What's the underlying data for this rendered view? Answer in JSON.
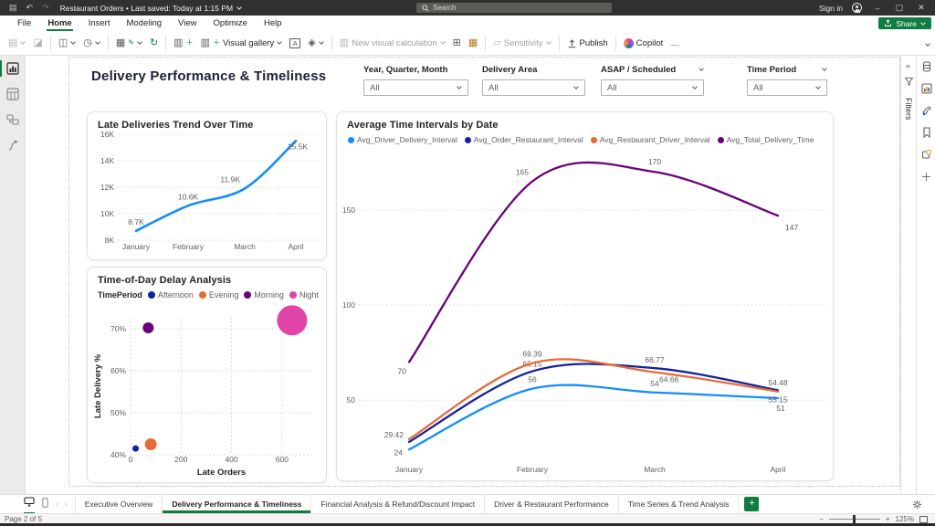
{
  "colors": {
    "accent_green": "#107C41",
    "titlebar_bg": "#323130",
    "axis_text": "#605E5C"
  },
  "titlebar": {
    "save_state": "Restaurant Orders • Last saved: Today at 1:15 PM",
    "search_placeholder": "Search",
    "sign_in": "Sign in"
  },
  "menu": {
    "items": [
      "File",
      "Home",
      "Insert",
      "Modeling",
      "View",
      "Optimize",
      "Help"
    ],
    "active_index": 1,
    "share_label": "Share"
  },
  "ribbon": {
    "visual_gallery_label": "Visual gallery",
    "new_visual_calc_label": "New visual calculation",
    "sensitivity_label": "Sensitivity",
    "publish_label": "Publish",
    "copilot_label": "Copilot",
    "more_label": "…"
  },
  "filters_pane": {
    "title": "Filters"
  },
  "page": {
    "title": "Delivery Performance & Timeliness",
    "slicers": [
      {
        "label": "Year, Quarter, Month",
        "value": "All",
        "header_chevron": false
      },
      {
        "label": "Delivery Area",
        "value": "All",
        "header_chevron": false
      },
      {
        "label": "ASAP / Scheduled",
        "value": "All",
        "header_chevron": true
      },
      {
        "label": "Time Period",
        "value": "All",
        "header_chevron": true
      }
    ]
  },
  "chart_data": [
    {
      "id": "late_deliveries",
      "type": "line",
      "title": "Late Deliveries Trend Over Time",
      "categories": [
        "January",
        "February",
        "March",
        "April"
      ],
      "series": [
        {
          "name": "Late Deliveries",
          "color": "#118DFF",
          "values": [
            8700,
            10600,
            11900,
            15500
          ],
          "labels": [
            "8.7K",
            "10.6K",
            "11.9K",
            "15.5K"
          ],
          "label_dx": [
            0,
            0,
            -5,
            2
          ],
          "label_dy": [
            -7,
            -7,
            -7,
            6
          ]
        }
      ],
      "ylim": [
        8000,
        16000
      ],
      "yticks": [
        {
          "v": 8000,
          "t": "8K"
        },
        {
          "v": 10000,
          "t": "10K"
        },
        {
          "v": 12000,
          "t": "12K"
        },
        {
          "v": 14000,
          "t": "14K"
        },
        {
          "v": 16000,
          "t": "16K"
        }
      ],
      "grid": "dotted",
      "legend_position": "none",
      "xlabel": "",
      "ylabel": ""
    },
    {
      "id": "time_of_day",
      "type": "scatter",
      "title": "Time-of-Day Delay Analysis",
      "legend_title": "TimePeriod",
      "xlabel": "Late Orders",
      "ylabel": "Late Delivery %",
      "xlim": [
        0,
        720
      ],
      "ylim": [
        40,
        72.6
      ],
      "xticks": [
        {
          "v": 0,
          "t": "0"
        },
        {
          "v": 200,
          "t": "200"
        },
        {
          "v": 400,
          "t": "400"
        },
        {
          "v": 600,
          "t": "600"
        }
      ],
      "yticks": [
        {
          "v": 40,
          "t": "40%"
        },
        {
          "v": 50,
          "t": "50%"
        },
        {
          "v": 60,
          "t": "60%"
        },
        {
          "v": 70,
          "t": "70%"
        }
      ],
      "grid": "dotted",
      "legend_position": "top",
      "points": [
        {
          "name": "Afternoon",
          "color": "#12239E",
          "x": 20,
          "y": 41.5,
          "r": 3.5
        },
        {
          "name": "Evening",
          "color": "#E66C37",
          "x": 80,
          "y": 42.5,
          "r": 6.5
        },
        {
          "name": "Morning",
          "color": "#6B007B",
          "x": 70,
          "y": 70.2,
          "r": 6
        },
        {
          "name": "Night",
          "color": "#E044A7",
          "x": 640,
          "y": 72,
          "r": 16.5
        }
      ]
    },
    {
      "id": "avg_intervals",
      "type": "line",
      "title": "Average Time Intervals by Date",
      "categories": [
        "January",
        "February",
        "March",
        "April"
      ],
      "series": [
        {
          "name": "Avg_Driver_Delivery_Interval",
          "color": "#118DFF",
          "values": [
            24,
            56,
            54,
            51
          ],
          "labels": [
            "24",
            "56",
            "54",
            "51"
          ],
          "label_dx": [
            -7,
            0,
            0,
            3
          ],
          "label_dy": [
            3,
            -7,
            -7,
            11
          ]
        },
        {
          "name": "Avg_Order_Restaurant_Interval",
          "color": "#12239E",
          "values": [
            28,
            65.15,
            66.77,
            55.15
          ],
          "labels": [
            "",
            "65.15",
            "66.77",
            "55.15"
          ],
          "label_dx": [
            0,
            0,
            0,
            0
          ],
          "label_dy": [
            0,
            -5,
            -6,
            10
          ]
        },
        {
          "name": "Avg_Restaurant_Driver_Interval",
          "color": "#E66C37",
          "values": [
            29.42,
            69.39,
            64.66,
            54.48
          ],
          "labels": [
            "29.42",
            "69.39",
            "64.66",
            "54.48"
          ],
          "label_dx": [
            -6,
            0,
            5,
            0
          ],
          "label_dy": [
            -2,
            -7,
            8,
            -7
          ]
        },
        {
          "name": "Avg_Total_Delivery_Time",
          "color": "#6B007B",
          "values": [
            70,
            165,
            170,
            147
          ],
          "labels": [
            "70",
            "165",
            "170",
            "147"
          ],
          "label_dx": [
            -3,
            -4,
            0,
            8
          ],
          "label_dy": [
            10,
            -7,
            -8,
            13
          ]
        }
      ],
      "ylim": [
        15,
        185
      ],
      "yticks": [
        {
          "v": 50,
          "t": "50"
        },
        {
          "v": 100,
          "t": "100"
        },
        {
          "v": 150,
          "t": "150"
        }
      ],
      "grid": "dotted",
      "legend_position": "top",
      "xlabel": "",
      "ylabel": ""
    }
  ],
  "tabbar": {
    "tabs": [
      "Executive Overview",
      "Delivery Performance & Timeliness",
      "Financial Analysis & Refund/Discount Impact",
      "Driver & Restaurant Performance",
      "Time Series & Trend Analysis"
    ],
    "active_index": 1,
    "add_label": "+"
  },
  "statusbar": {
    "page_label": "Page 2 of 5",
    "zoom_level": "125%"
  }
}
